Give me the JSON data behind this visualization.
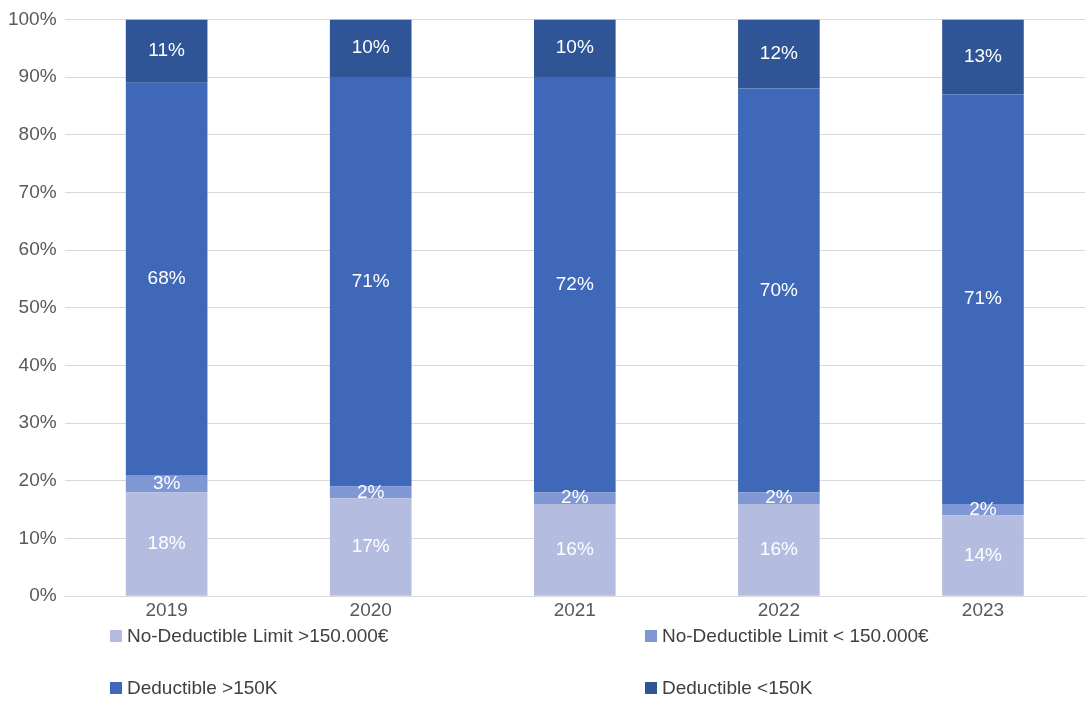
{
  "chart_data": {
    "type": "bar",
    "stacked": true,
    "categories": [
      "2019",
      "2020",
      "2021",
      "2022",
      "2023"
    ],
    "series": [
      {
        "name": "No-Deductible  Limit >150.000€",
        "color": "#b4bde0",
        "values": [
          18,
          17,
          16,
          16,
          14
        ],
        "value_labels": [
          "18%",
          "17%",
          "16%",
          "16%",
          "14%"
        ]
      },
      {
        "name": "No-Deductible  Limit < 150.000€",
        "color": "#7f97d4",
        "values": [
          3,
          2,
          2,
          2,
          2
        ],
        "value_labels": [
          "3%",
          "2%",
          "2%",
          "2%",
          "2%"
        ]
      },
      {
        "name": "Deductible >150K",
        "color": "#3f69b8",
        "values": [
          68,
          71,
          72,
          70,
          71
        ],
        "value_labels": [
          "68%",
          "71%",
          "72%",
          "70%",
          "71%"
        ]
      },
      {
        "name": "Deductible <150K",
        "color": "#2f5597",
        "values": [
          11,
          10,
          10,
          12,
          13
        ],
        "value_labels": [
          "11%",
          "10%",
          "10%",
          "12%",
          "13%"
        ]
      }
    ],
    "ylim": [
      0,
      100
    ],
    "yticks": [
      {
        "value": 0,
        "label": "0%"
      },
      {
        "value": 10,
        "label": "10%"
      },
      {
        "value": 20,
        "label": "20%"
      },
      {
        "value": 30,
        "label": "30%"
      },
      {
        "value": 40,
        "label": "40%"
      },
      {
        "value": 50,
        "label": "50%"
      },
      {
        "value": 60,
        "label": "60%"
      },
      {
        "value": 70,
        "label": "70%"
      },
      {
        "value": 80,
        "label": "80%"
      },
      {
        "value": 90,
        "label": "90%"
      },
      {
        "value": 100,
        "label": "100%"
      }
    ],
    "grid": "y",
    "legend": "bottom"
  }
}
